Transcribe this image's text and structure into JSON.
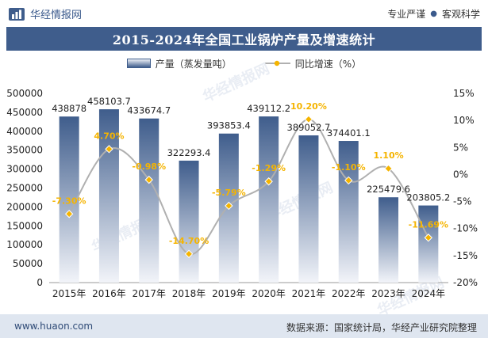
{
  "header": {
    "brand": "华经情报网",
    "slogan_left": "专业严谨",
    "slogan_right": "客观科学"
  },
  "chart_data": {
    "type": "bar+line",
    "title": "2015-2024年全国工业锅炉产量及增速统计",
    "categories": [
      "2015年",
      "2016年",
      "2017年",
      "2018年",
      "2019年",
      "2020年",
      "2021年",
      "2022年",
      "2023年",
      "2024年"
    ],
    "series": [
      {
        "name": "产量（蒸发量吨）",
        "type": "bar",
        "axis": "left",
        "values": [
          438878,
          458103.7,
          433674.7,
          322293.4,
          393853.4,
          439112.2,
          389052.7,
          374401.1,
          225479.6,
          203805.2
        ],
        "labels": [
          "438878",
          "458103.7",
          "433674.7",
          "322293.4",
          "393853.4",
          "439112.2",
          "389052.7",
          "374401.1",
          "225479.6",
          "203805.2"
        ]
      },
      {
        "name": "同比增速（%）",
        "type": "line",
        "axis": "right",
        "values": [
          -7.3,
          4.7,
          -0.98,
          -14.7,
          -5.79,
          -1.29,
          10.2,
          -1.1,
          1.1,
          -11.69
        ],
        "labels": [
          "-7.30%",
          "4.70%",
          "-0.98%",
          "-14.70%",
          "-5.79%",
          "-1.29%",
          "10.20%",
          "-1.10%",
          "1.10%",
          "-11.69%"
        ]
      }
    ],
    "left_axis": {
      "ylim": [
        0,
        500000
      ],
      "ticks": [
        "0",
        "50000",
        "100000",
        "150000",
        "200000",
        "250000",
        "300000",
        "350000",
        "400000",
        "450000",
        "500000"
      ]
    },
    "right_axis": {
      "ylim": [
        -20,
        15
      ],
      "ticks": [
        "-20%",
        "-15%",
        "-10%",
        "-5%",
        "0%",
        "5%",
        "10%",
        "15%"
      ]
    },
    "colors": {
      "bar_top": "#3f5d8c",
      "bar_bottom": "#eef1f7",
      "line": "#b0b0b0",
      "marker": "#f5b400",
      "pct_text": "#f5b400"
    }
  },
  "footer": {
    "website": "www.huaon.com",
    "source": "数据来源：国家统计局，华经产业研究院整理"
  }
}
